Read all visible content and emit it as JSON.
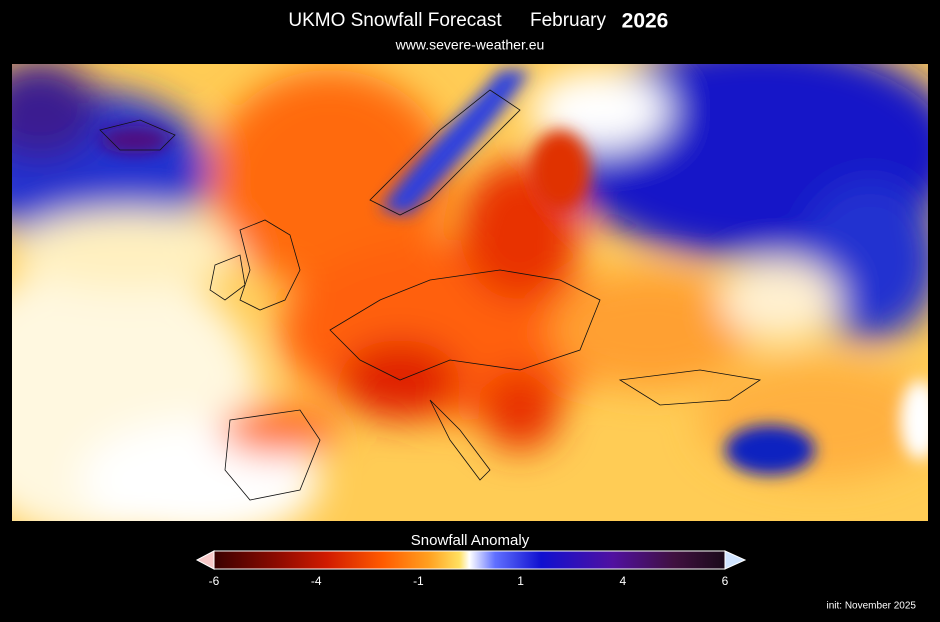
{
  "header": {
    "title": "UKMO Snowfall Forecast",
    "month": "February",
    "year": "2026",
    "subtitle": "www.severe-weather.eu"
  },
  "colorbar": {
    "title": "Snowfall Anomaly",
    "ticks": [
      -6,
      -4,
      -1,
      1,
      4,
      6
    ]
  },
  "footer": {
    "init": "init: November 2025"
  }
}
